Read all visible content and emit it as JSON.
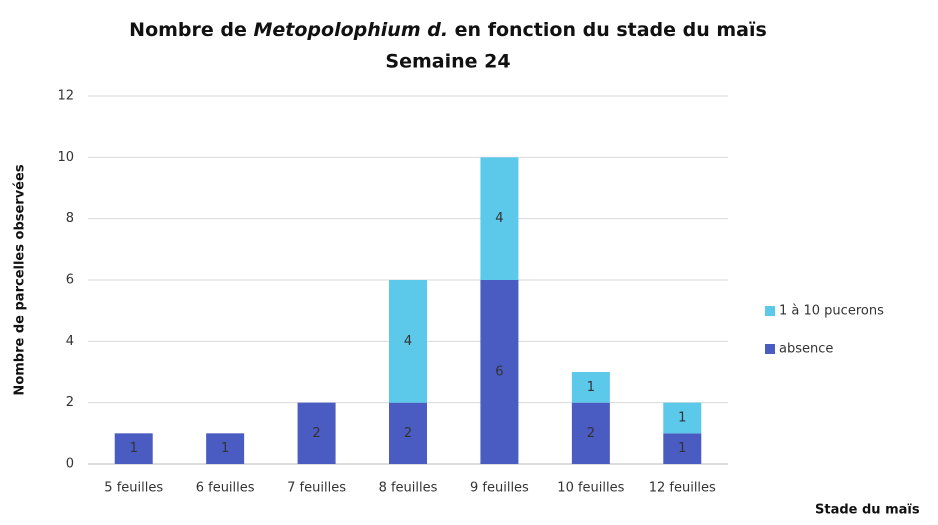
{
  "chart_data": {
    "type": "stacked_bar",
    "title": [
      "Nombre de ",
      "Metopolophium d.",
      " en fonction du stade du maïs"
    ],
    "subtitle": "Semaine 24",
    "x_label": "Stade du maïs",
    "y_label": "Nombre de parcelles observées",
    "categories": [
      "5 feuilles",
      "6 feuilles",
      "7 feuilles",
      "8 feuilles",
      "9 feuilles",
      "10 feuilles",
      "12 feuilles"
    ],
    "series": [
      {
        "name": "absence",
        "color": "#4a5bc2",
        "values": [
          1,
          1,
          2,
          2,
          6,
          2,
          1
        ]
      },
      {
        "name": "1 à 10 pucerons",
        "color": "#5cc8ea",
        "values": [
          null,
          null,
          null,
          4,
          4,
          1,
          1
        ]
      }
    ],
    "ylim": [
      0,
      12
    ],
    "yticks": [
      0,
      2,
      4,
      6,
      8,
      10,
      12
    ],
    "grid": true,
    "legend": "right"
  }
}
